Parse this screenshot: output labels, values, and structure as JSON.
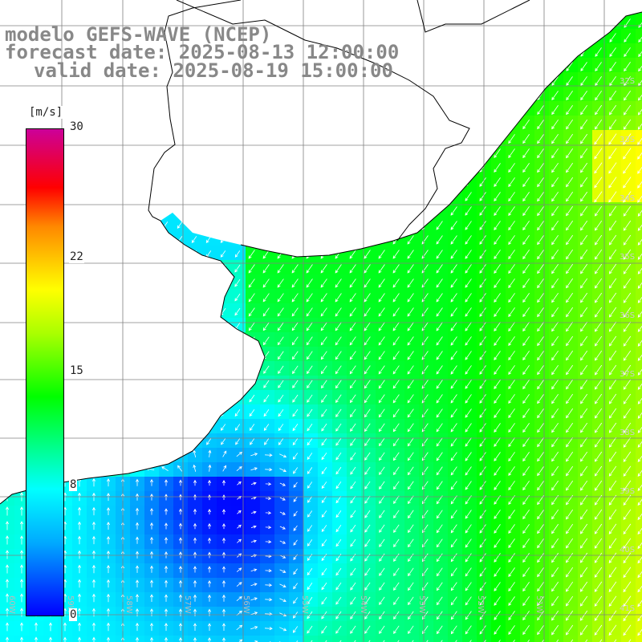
{
  "title": {
    "line1": "modelo GEFS-WAVE (NCEP)",
    "line2": "forecast date: 2025-08-13 12:00:00",
    "line3": "valid date: 2025-08-19 15:00:00"
  },
  "colorbar": {
    "units": "[m/s]",
    "ticks": [
      {
        "label": "30",
        "value": 30
      },
      {
        "label": "22",
        "value": 22
      },
      {
        "label": "15",
        "value": 15
      },
      {
        "label": "8",
        "value": 8
      },
      {
        "label": "0",
        "value": 0
      }
    ],
    "range": [
      0,
      30
    ]
  },
  "grid": {
    "lat_labels": [
      "32S",
      "33S",
      "34S",
      "35S",
      "36S",
      "37S",
      "38S",
      "39S",
      "40S",
      "41S"
    ],
    "lon_labels": [
      "60W",
      "59W",
      "58W",
      "57W",
      "56W",
      "55W",
      "54W",
      "53W",
      "52W",
      "51W"
    ]
  },
  "colors": {
    "land": "#ffffff",
    "coastline": "#000000",
    "gridline": "#808080",
    "wind_arrow": "#ffffff",
    "title_text": "#888888"
  }
}
